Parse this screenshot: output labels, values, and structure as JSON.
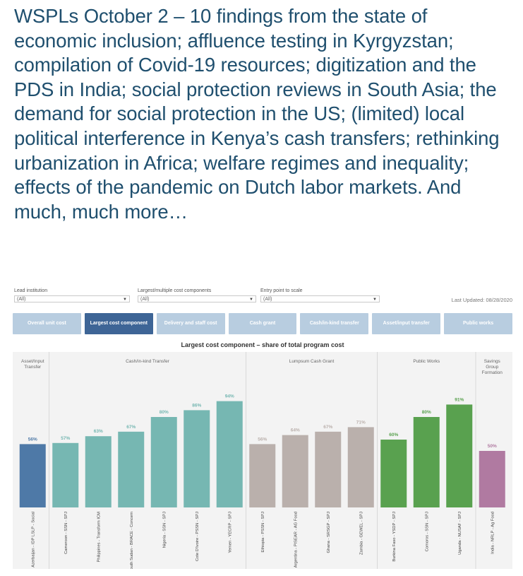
{
  "headline": "WSPLs October 2 – 10 findings from the state of economic inclusion; affluence testing in Kyrgyzstan; compilation of Covid-19 resources; digitization and the PDS in India; social protection reviews in South Asia; the demand for social protection in the US; (limited) local political interference in Kenya’s cash transfers; rethinking urbanization in Africa; welfare regimes and inequality; effects of the pandemic on Dutch labor markets. And much, much more…",
  "filters": [
    {
      "label": "Lead institution",
      "value": "(All)"
    },
    {
      "label": "Largest/multiple cost components",
      "value": "(All)"
    },
    {
      "label": "Entry point to scale",
      "value": "(All)"
    }
  ],
  "last_updated": "Last Updated: 08/28/2020",
  "tabs": [
    {
      "label": "Overall unit cost",
      "active": false
    },
    {
      "label": "Largest cost component",
      "active": true
    },
    {
      "label": "Delivery and staff cost",
      "active": false
    },
    {
      "label": "Cash grant",
      "active": false
    },
    {
      "label": "Cash/in-kind transfer",
      "active": false
    },
    {
      "label": "Asset/input transfer",
      "active": false
    },
    {
      "label": "Public works",
      "active": false
    }
  ],
  "colors": {
    "Asset/Input Transfer": "#4e79a7",
    "Cash/in-kind Transfer": "#76b7b2",
    "Lumpsum Cash Grant": "#bab0ac",
    "Public Works": "#59a14f",
    "Savings Group Formation": "#b07aa1",
    "panel_bg": "#f3f3f3",
    "active_tab": "#3e6596",
    "inactive_tab": "#b8cde0"
  },
  "chart_data": {
    "type": "bar",
    "title": "Largest cost component – share of total program cost",
    "groups": [
      {
        "name": "Asset/Input Transfer",
        "label_lines": [
          "Asset/Input",
          "Transfer"
        ],
        "categories": [
          "Azerbaijan - IDP LSLP - Social"
        ],
        "values": [
          56
        ]
      },
      {
        "name": "Cash/in-kind Transfer",
        "label_lines": [
          "Cash/in-kind Transfer"
        ],
        "categories": [
          "Cameroon - SSN - SPJ",
          "Philippines - Transform ICM",
          "South Sudan - BRACE - Concern",
          "Nigeria - SSN - SPJ",
          "Cote D'Ivoire - PSSN - SPJ",
          "Yemen - YECRP - SPJ"
        ],
        "values": [
          57,
          63,
          67,
          80,
          86,
          94
        ]
      },
      {
        "name": "Lumpsum Cash Grant",
        "label_lines": [
          "Lumpsum Cash Grant"
        ],
        "categories": [
          "Ethiopia - PSSN - SPJ",
          "Argentina - PISEAR - AG Food",
          "Ghana - SRSGP - SPJ",
          "Zambia - GEWEL - SPJ"
        ],
        "values": [
          56,
          64,
          67,
          71
        ]
      },
      {
        "name": "Public Works",
        "label_lines": [
          "Public Works"
        ],
        "categories": [
          "Burkina Faso - YSDP - SPJ",
          "Comoros - SSN - SPJ",
          "Uganda - NUSAF - SPJ"
        ],
        "values": [
          60,
          80,
          91
        ]
      },
      {
        "name": "Savings Group Formation",
        "label_lines": [
          "Savings",
          "Group",
          "Formation"
        ],
        "categories": [
          "India - NRLP - Ag Food"
        ],
        "values": [
          50
        ]
      }
    ],
    "ylim": [
      0,
      100
    ],
    "value_suffix": "%"
  }
}
